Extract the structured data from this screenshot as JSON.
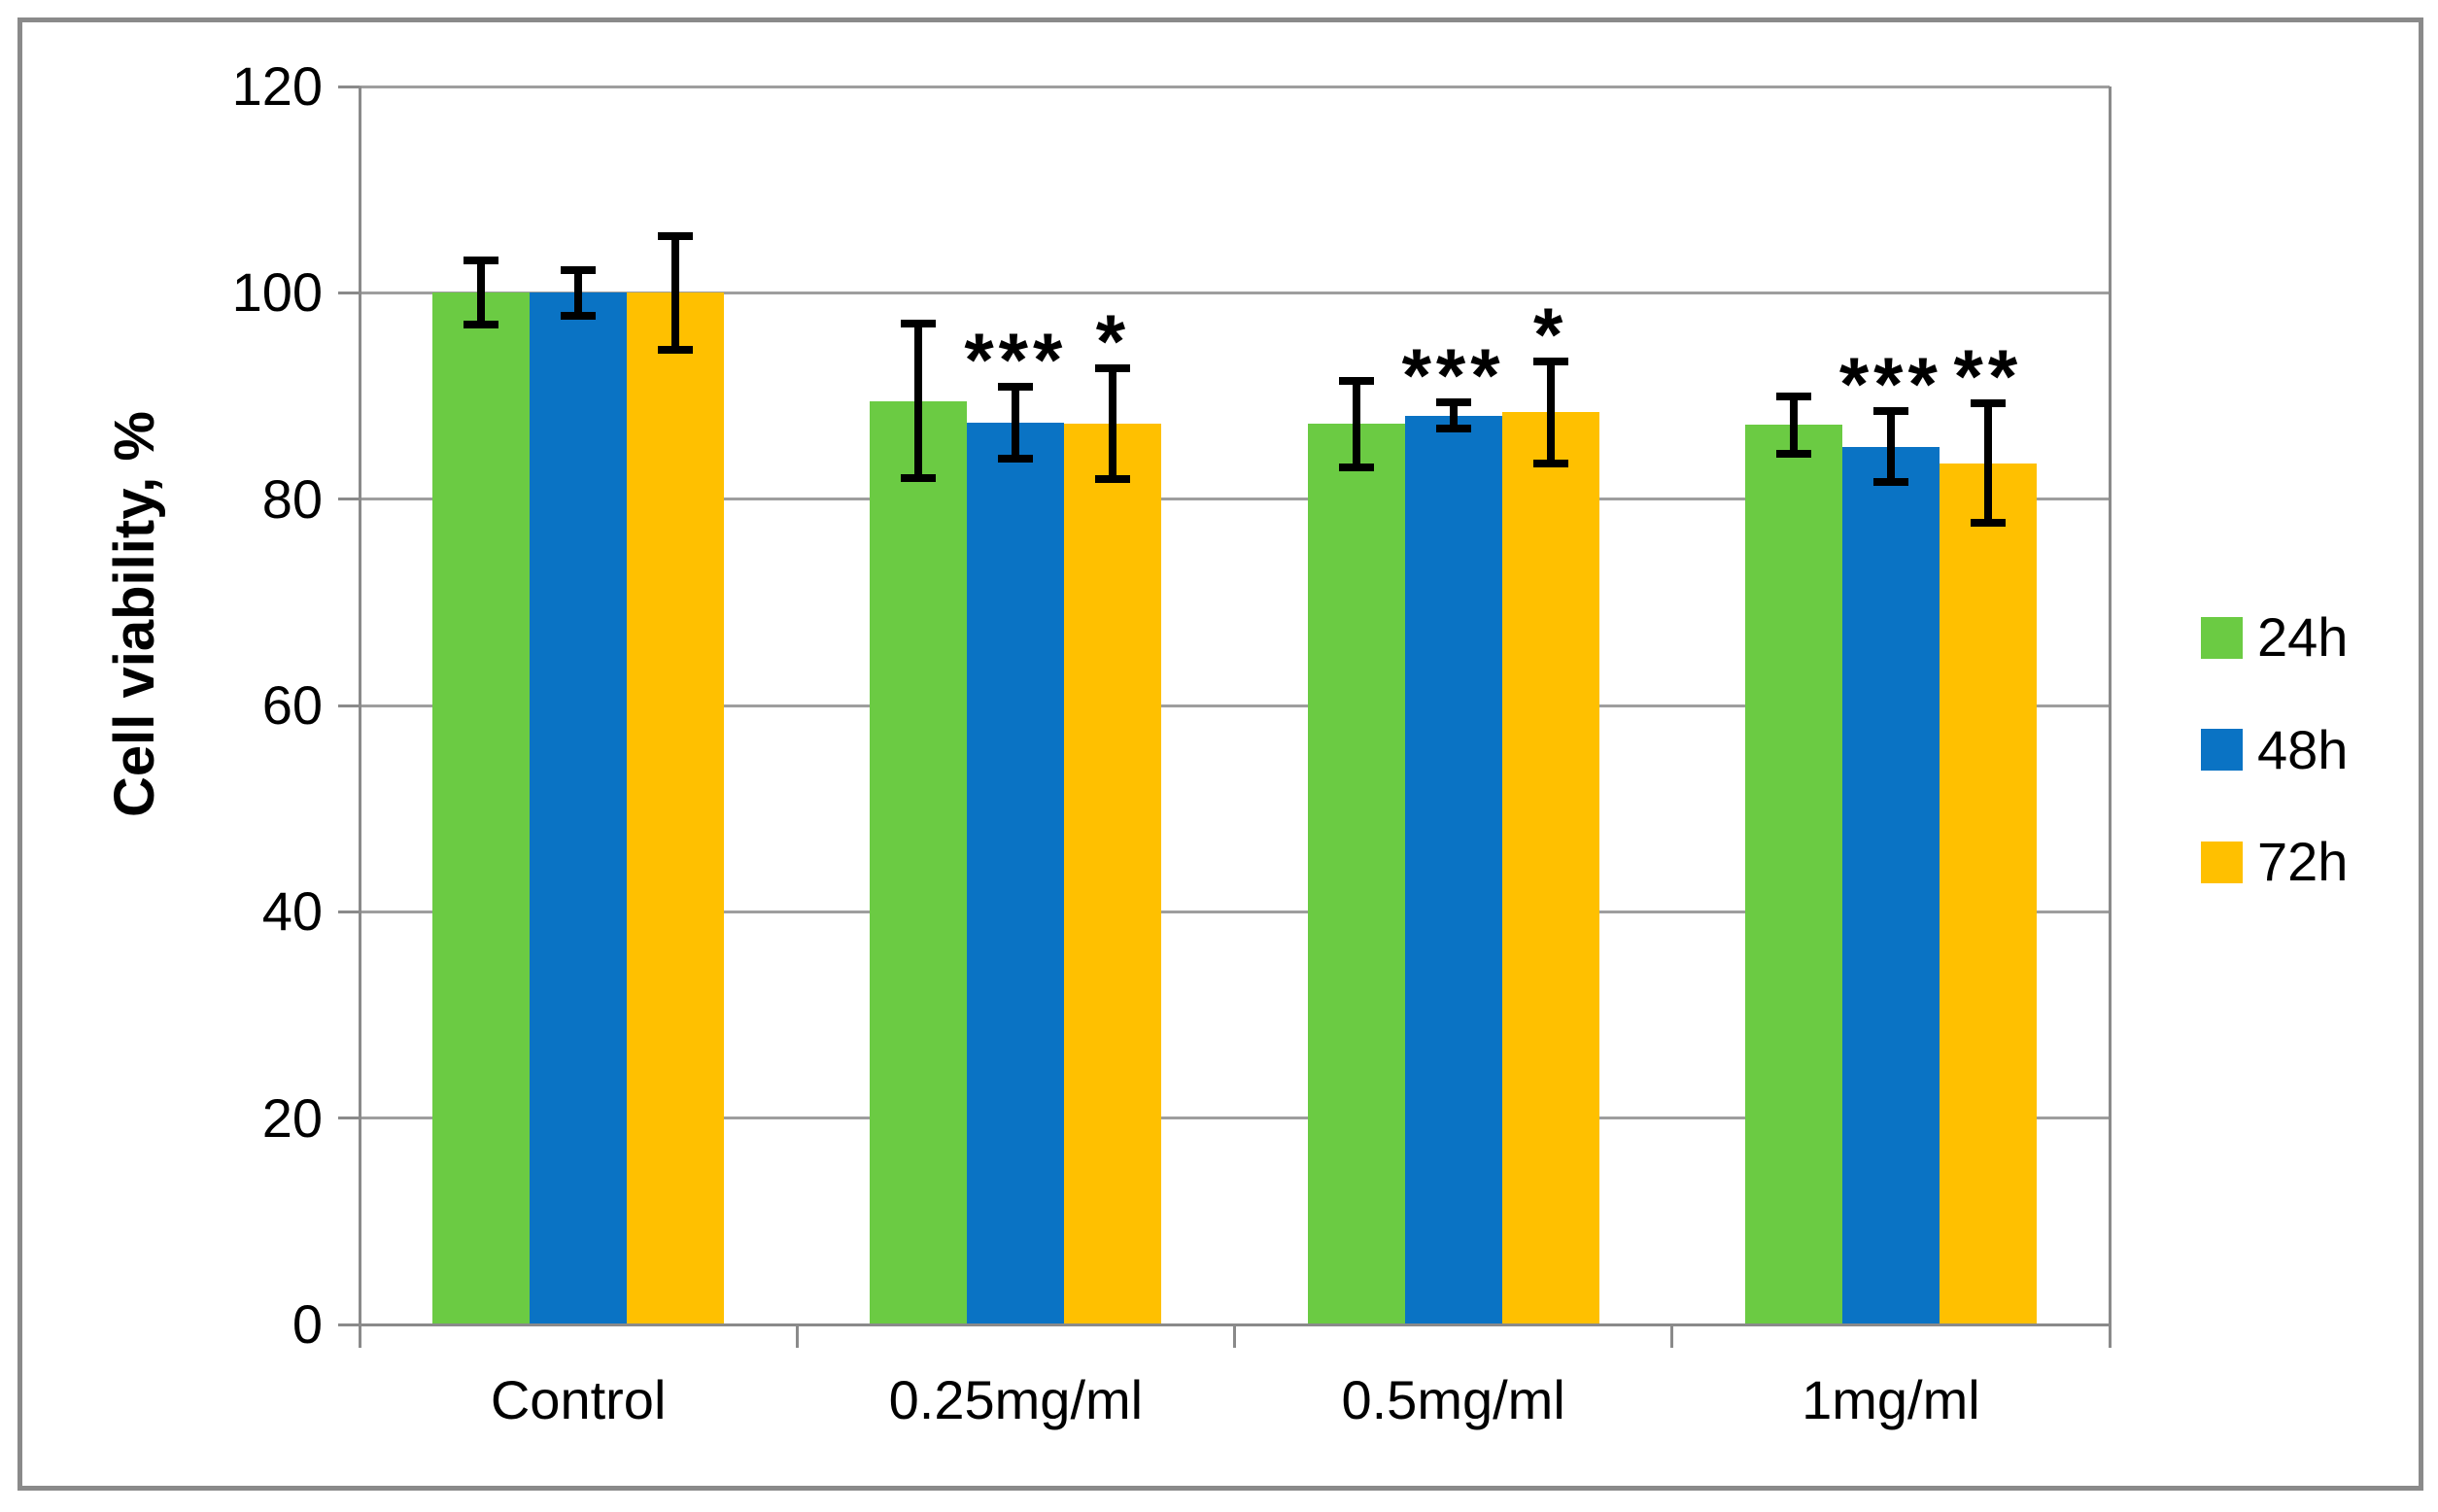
{
  "chart_data": {
    "type": "bar",
    "title": "",
    "ylabel": "Cell viability, %",
    "xlabel": "",
    "categories": [
      "Control",
      "0.25mg/ml",
      "0.5mg/ml",
      "1mg/ml"
    ],
    "series": [
      {
        "name": "24h",
        "color": "#6bcb43",
        "values": [
          100,
          89.5,
          87.3,
          87.2
        ],
        "errors": [
          3.1,
          7.5,
          4.2,
          2.8
        ],
        "sig": [
          "",
          "",
          "",
          ""
        ]
      },
      {
        "name": "48h",
        "color": "#0a73c4",
        "values": [
          100,
          87.4,
          88.1,
          85.1
        ],
        "errors": [
          2.2,
          3.5,
          1.3,
          3.4
        ],
        "sig": [
          "",
          "***",
          "***",
          "***"
        ]
      },
      {
        "name": "72h",
        "color": "#ffc000",
        "values": [
          100,
          87.3,
          88.4,
          83.5
        ],
        "errors": [
          5.5,
          5.4,
          4.9,
          5.8
        ],
        "sig": [
          "",
          "*",
          "*",
          "**"
        ]
      }
    ],
    "yticks": [
      0,
      20,
      40,
      60,
      80,
      100,
      120
    ],
    "ylim": [
      0,
      120
    ],
    "grid": true,
    "legend_position": "right",
    "colors": {
      "error_bar": "#000000",
      "axis": "#8a8a8a",
      "gridline": "#9e9e9e",
      "outer_border": "#8a8a8a",
      "text": "#000000",
      "background": "#ffffff"
    }
  }
}
